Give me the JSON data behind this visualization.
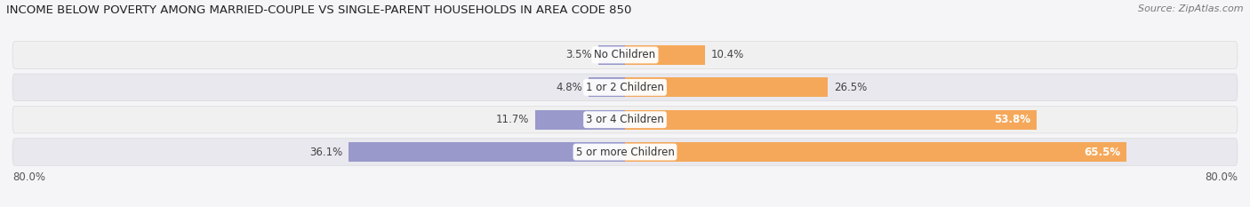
{
  "title": "INCOME BELOW POVERTY AMONG MARRIED-COUPLE VS SINGLE-PARENT HOUSEHOLDS IN AREA CODE 850",
  "source": "Source: ZipAtlas.com",
  "categories": [
    "No Children",
    "1 or 2 Children",
    "3 or 4 Children",
    "5 or more Children"
  ],
  "married_values": [
    3.5,
    4.8,
    11.7,
    36.1
  ],
  "single_values": [
    10.4,
    26.5,
    53.8,
    65.5
  ],
  "married_color": "#9999cc",
  "single_color": "#f5a85a",
  "row_bg_light": "#efefef",
  "row_bg_dark": "#e5e5ea",
  "bg_color": "#f5f5f8",
  "axis_range": 80.0,
  "title_fontsize": 9.5,
  "source_fontsize": 8,
  "value_fontsize": 8.5,
  "category_fontsize": 8.5,
  "legend_fontsize": 8.5
}
